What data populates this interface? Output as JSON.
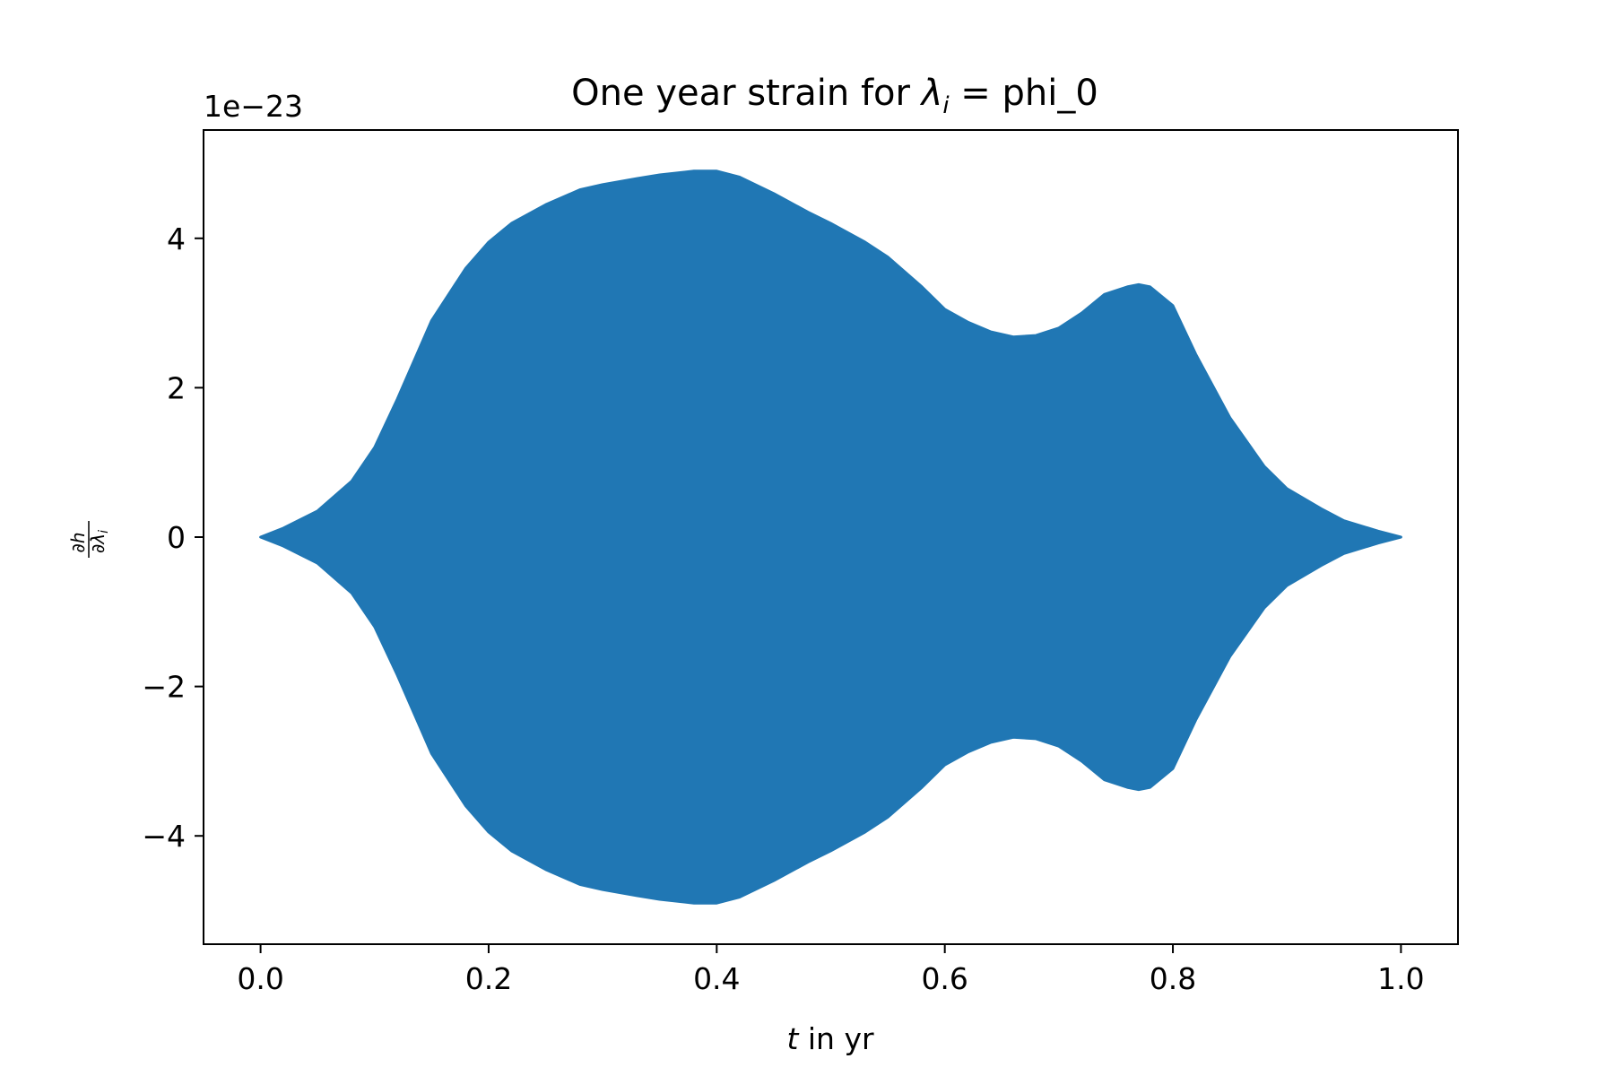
{
  "chart_data": {
    "type": "area",
    "title_prefix": "One year strain for ",
    "title_symbol": "λ",
    "title_subscript": "i",
    "title_suffix": " = phi_0",
    "xlabel_var": "t",
    "xlabel_rest": " in yr",
    "ylabel_num": "∂h",
    "ylabel_den": "∂λ",
    "ylabel_den_sub": "i",
    "offset_text": "1e−23",
    "xlim": [
      -0.05,
      1.05
    ],
    "ylim": [
      -5.45,
      5.45
    ],
    "x_ticks": [
      0.0,
      0.2,
      0.4,
      0.6,
      0.8,
      1.0
    ],
    "x_tick_labels": [
      "0.0",
      "0.2",
      "0.4",
      "0.6",
      "0.8",
      "1.0"
    ],
    "y_ticks": [
      -4,
      -2,
      0,
      2,
      4
    ],
    "y_tick_labels": [
      "−4",
      "−2",
      "0",
      "2",
      "4"
    ],
    "grid": false,
    "series_color": "#2077b4",
    "envelope": {
      "x": [
        0.0,
        0.02,
        0.05,
        0.08,
        0.1,
        0.12,
        0.15,
        0.18,
        0.2,
        0.22,
        0.25,
        0.28,
        0.3,
        0.33,
        0.35,
        0.38,
        0.4,
        0.42,
        0.45,
        0.48,
        0.5,
        0.53,
        0.55,
        0.58,
        0.6,
        0.62,
        0.64,
        0.66,
        0.68,
        0.7,
        0.72,
        0.74,
        0.76,
        0.77,
        0.78,
        0.8,
        0.82,
        0.85,
        0.88,
        0.9,
        0.93,
        0.95,
        0.98,
        1.0
      ],
      "upper": [
        0.0,
        0.12,
        0.35,
        0.75,
        1.2,
        1.85,
        2.9,
        3.6,
        3.95,
        4.2,
        4.45,
        4.65,
        4.72,
        4.8,
        4.85,
        4.9,
        4.9,
        4.82,
        4.6,
        4.35,
        4.2,
        3.95,
        3.75,
        3.35,
        3.05,
        2.88,
        2.75,
        2.68,
        2.7,
        2.8,
        3.0,
        3.25,
        3.35,
        3.38,
        3.35,
        3.1,
        2.45,
        1.6,
        0.95,
        0.65,
        0.38,
        0.22,
        0.08,
        0.0
      ],
      "lower": [
        0.0,
        -0.12,
        -0.35,
        -0.75,
        -1.2,
        -1.85,
        -2.9,
        -3.6,
        -3.95,
        -4.2,
        -4.45,
        -4.65,
        -4.72,
        -4.8,
        -4.85,
        -4.9,
        -4.9,
        -4.82,
        -4.6,
        -4.35,
        -4.2,
        -3.95,
        -3.75,
        -3.35,
        -3.05,
        -2.88,
        -2.75,
        -2.68,
        -2.7,
        -2.8,
        -3.0,
        -3.25,
        -3.35,
        -3.38,
        -3.35,
        -3.1,
        -2.45,
        -1.6,
        -0.95,
        -0.65,
        -0.38,
        -0.22,
        -0.08,
        0.0
      ]
    }
  }
}
